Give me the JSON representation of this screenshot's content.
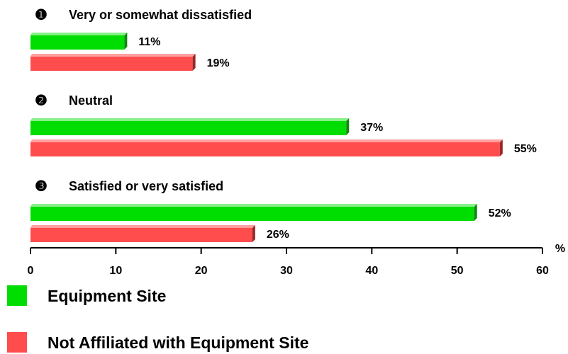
{
  "chart_data": {
    "type": "bar",
    "orientation": "horizontal",
    "category_numbers": [
      "❶",
      "❷",
      "❸"
    ],
    "categories": [
      "Very or somewhat dissatisfied",
      "Neutral",
      "Satisfied or very satisfied"
    ],
    "series": [
      {
        "name": "Equipment Site",
        "color": "#00dd00",
        "values": [
          11,
          37,
          52
        ],
        "value_labels": [
          "11%",
          "37%",
          "52%"
        ]
      },
      {
        "name": "Not Affiliated with Equipment Site",
        "color": "#ff4d4d",
        "values": [
          19,
          55,
          26
        ],
        "value_labels": [
          "19%",
          "55%",
          "26%"
        ]
      }
    ],
    "xlabel": "%",
    "xlim": [
      0,
      60
    ],
    "xticks": [
      0,
      10,
      20,
      30,
      40,
      50,
      60
    ]
  }
}
